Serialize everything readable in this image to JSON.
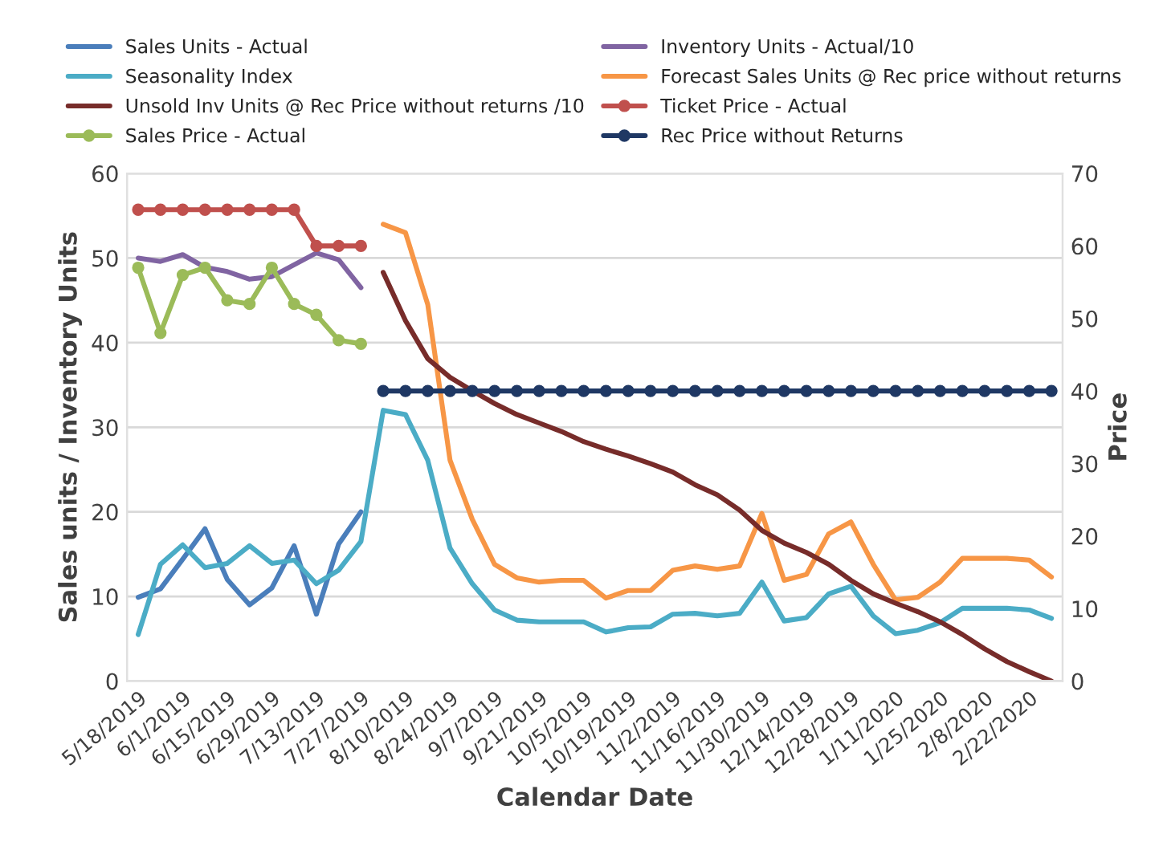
{
  "chart_data": {
    "type": "line",
    "xlabel": "Calendar Date",
    "ylabel": "Sales units / Inventory Units",
    "y2label": "Price",
    "categories": [
      "5/18/2019",
      null,
      "6/1/2019",
      null,
      "6/15/2019",
      null,
      "6/29/2019",
      null,
      "7/13/2019",
      null,
      "7/27/2019",
      null,
      "8/10/2019",
      null,
      "8/24/2019",
      null,
      "9/7/2019",
      null,
      "9/21/2019",
      null,
      "10/5/2019",
      null,
      "10/19/2019",
      null,
      "11/2/2019",
      null,
      "11/16/2019",
      null,
      "11/30/2019",
      null,
      "12/14/2019",
      null,
      "12/28/2019",
      null,
      "1/11/2020",
      null,
      "1/25/2020",
      null,
      "2/8/2020",
      null,
      "2/22/2020",
      null
    ],
    "ylim": [
      0,
      60
    ],
    "yticks": [
      0,
      10,
      20,
      30,
      40,
      50,
      60
    ],
    "y2lim": [
      0,
      70
    ],
    "y2ticks": [
      0,
      10,
      20,
      30,
      40,
      50,
      60,
      70
    ],
    "grid": "y",
    "legend": "top",
    "line_style": "solid",
    "series": [
      {
        "name": "Sales Units - Actual",
        "color": "#4a7ebb",
        "marker": "none",
        "values": [
          9.9,
          10.9,
          14.4,
          18.0,
          12.0,
          9.0,
          11.0,
          16.0,
          7.9,
          16.2,
          20.0,
          null,
          null,
          null,
          null,
          null,
          null,
          null,
          null,
          null,
          null,
          null,
          null,
          null,
          null,
          null,
          null,
          null,
          null,
          null,
          null,
          null,
          null,
          null,
          null,
          null,
          null,
          null,
          null,
          null,
          null,
          null
        ]
      },
      {
        "name": "Inventory Units - Actual/10",
        "color": "#8064a2",
        "marker": "none",
        "values": [
          50.0,
          49.6,
          50.4,
          48.9,
          48.4,
          47.5,
          47.8,
          49.2,
          50.6,
          49.8,
          46.5,
          null,
          null,
          null,
          null,
          null,
          null,
          null,
          null,
          null,
          null,
          null,
          null,
          null,
          null,
          null,
          null,
          null,
          null,
          null,
          null,
          null,
          null,
          null,
          null,
          null,
          null,
          null,
          null,
          null,
          null,
          null
        ]
      },
      {
        "name": "Seasonality Index",
        "color": "#4bacc6",
        "marker": "none",
        "values": [
          5.5,
          13.8,
          16.1,
          13.4,
          13.9,
          16.0,
          13.9,
          14.3,
          11.5,
          13.1,
          16.5,
          32.0,
          31.5,
          26.1,
          15.7,
          11.5,
          8.4,
          7.2,
          7.0,
          7.0,
          7.0,
          5.8,
          6.3,
          6.4,
          7.9,
          8.0,
          7.7,
          8.0,
          11.7,
          7.1,
          7.5,
          10.3,
          11.2,
          7.7,
          5.6,
          6.0,
          6.9,
          8.6,
          8.6,
          8.6,
          8.4,
          7.4
        ]
      },
      {
        "name": "Forecast Sales Units @ Rec price without returns",
        "color": "#f79646",
        "marker": "none",
        "values": [
          null,
          null,
          null,
          null,
          null,
          null,
          null,
          null,
          null,
          null,
          null,
          54.0,
          53.0,
          44.5,
          26.1,
          19.1,
          13.8,
          12.2,
          11.7,
          11.9,
          11.9,
          9.8,
          10.7,
          10.7,
          13.1,
          13.6,
          13.2,
          13.6,
          19.8,
          11.9,
          12.6,
          17.4,
          18.8,
          13.8,
          9.6,
          9.9,
          11.7,
          14.5,
          14.5,
          14.5,
          14.3,
          12.3
        ]
      },
      {
        "name": "Unsold Inv Units @ Rec Price without returns /10",
        "color": "#772c2a",
        "marker": "none",
        "values": [
          null,
          null,
          null,
          null,
          null,
          null,
          null,
          null,
          null,
          null,
          null,
          48.3,
          42.6,
          38.1,
          35.9,
          34.3,
          32.8,
          31.5,
          30.5,
          29.5,
          28.3,
          27.4,
          26.6,
          25.7,
          24.7,
          23.2,
          22.0,
          20.2,
          17.8,
          16.3,
          15.2,
          13.8,
          11.9,
          10.3,
          9.2,
          8.2,
          7.0,
          5.5,
          3.8,
          2.3,
          1.1,
          0
        ]
      },
      {
        "name": "Ticket Price - Actual",
        "color": "#c0504d",
        "marker": "circle",
        "axis": "y2",
        "values": [
          65,
          65,
          65,
          65,
          65,
          65,
          65,
          65,
          60,
          60,
          60,
          null,
          null,
          null,
          null,
          null,
          null,
          null,
          null,
          null,
          null,
          null,
          null,
          null,
          null,
          null,
          null,
          null,
          null,
          null,
          null,
          null,
          null,
          null,
          null,
          null,
          null,
          null,
          null,
          null,
          null,
          null
        ]
      },
      {
        "name": "Sales Price - Actual",
        "color": "#9bbb59",
        "marker": "circle",
        "axis": "y2",
        "values": [
          57,
          48,
          56,
          57,
          52.5,
          52,
          57,
          52,
          50.5,
          47,
          46.5,
          null,
          null,
          null,
          null,
          null,
          null,
          null,
          null,
          null,
          null,
          null,
          null,
          null,
          null,
          null,
          null,
          null,
          null,
          null,
          null,
          null,
          null,
          null,
          null,
          null,
          null,
          null,
          null,
          null,
          null,
          null
        ]
      },
      {
        "name": "Rec Price without Returns",
        "color": "#1f3864",
        "marker": "circle",
        "axis": "y2",
        "values": [
          null,
          null,
          null,
          null,
          null,
          null,
          null,
          null,
          null,
          null,
          null,
          40,
          40,
          40,
          40,
          40,
          40,
          40,
          40,
          40,
          40,
          40,
          40,
          40,
          40,
          40,
          40,
          40,
          40,
          40,
          40,
          40,
          40,
          40,
          40,
          40,
          40,
          40,
          40,
          40,
          40,
          40
        ]
      }
    ]
  }
}
